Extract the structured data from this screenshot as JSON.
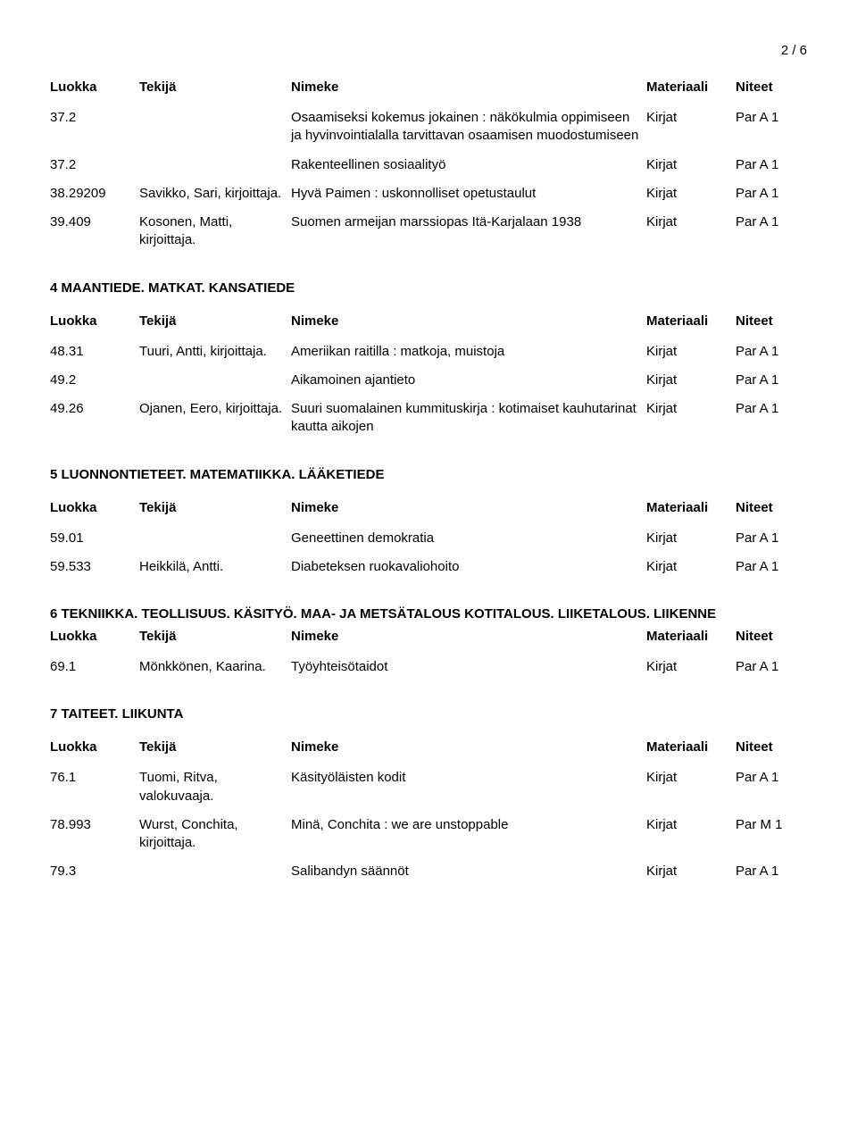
{
  "page_number": "2 / 6",
  "headers": {
    "luokka": "Luokka",
    "tekija": "Tekijä",
    "nimeke": "Nimeke",
    "materiaali": "Materiaali",
    "niteet": "Niteet"
  },
  "sections": [
    {
      "title": "",
      "rows": [
        {
          "luokka": "37.2",
          "tekija": "",
          "nimeke": "Osaamiseksi kokemus jokainen : näkökulmia oppimiseen ja hyvinvointialalla tarvittavan osaamisen muodostumiseen",
          "materiaali": "Kirjat",
          "niteet": "Par A 1"
        },
        {
          "luokka": "37.2",
          "tekija": "",
          "nimeke": "Rakenteellinen sosiaalityö",
          "materiaali": "Kirjat",
          "niteet": "Par A 1"
        },
        {
          "luokka": "38.29209",
          "tekija": "Savikko, Sari, kirjoittaja.",
          "nimeke": "Hyvä Paimen : uskonnolliset opetustaulut",
          "materiaali": "Kirjat",
          "niteet": "Par A 1"
        },
        {
          "luokka": "39.409",
          "tekija": "Kosonen, Matti, kirjoittaja.",
          "nimeke": "Suomen armeijan marssiopas Itä-Karjalaan 1938",
          "materiaali": "Kirjat",
          "niteet": "Par A 1"
        }
      ]
    },
    {
      "title": "4 MAANTIEDE. MATKAT. KANSATIEDE",
      "rows": [
        {
          "luokka": "48.31",
          "tekija": "Tuuri, Antti, kirjoittaja.",
          "nimeke": "Ameriikan raitilla : matkoja, muistoja",
          "materiaali": "Kirjat",
          "niteet": "Par A 1"
        },
        {
          "luokka": "49.2",
          "tekija": "",
          "nimeke": "Aikamoinen ajantieto",
          "materiaali": "Kirjat",
          "niteet": "Par A 1"
        },
        {
          "luokka": "49.26",
          "tekija": "Ojanen, Eero, kirjoittaja.",
          "nimeke": "Suuri suomalainen kummituskirja : kotimaiset kauhutarinat kautta aikojen",
          "materiaali": "Kirjat",
          "niteet": "Par A 1"
        }
      ]
    },
    {
      "title": "5 LUONNONTIETEET. MATEMATIIKKA. LÄÄKETIEDE",
      "rows": [
        {
          "luokka": "59.01",
          "tekija": "",
          "nimeke": "Geneettinen demokratia",
          "materiaali": "Kirjat",
          "niteet": "Par A 1"
        },
        {
          "luokka": "59.533",
          "tekija": "Heikkilä, Antti.",
          "nimeke": "Diabeteksen ruokavaliohoito",
          "materiaali": "Kirjat",
          "niteet": "Par A 1"
        }
      ]
    },
    {
      "title": "6 TEKNIIKKA. TEOLLISUUS. KÄSITYÖ. MAA- JA METSÄTALOUS KOTITALOUS. LIIKETALOUS. LIIKENNE",
      "tight": true,
      "rows": [
        {
          "luokka": "69.1",
          "tekija": "Mönkkönen, Kaarina.",
          "nimeke": "Työyhteisötaidot",
          "materiaali": "Kirjat",
          "niteet": "Par A 1"
        }
      ]
    },
    {
      "title": "7 TAITEET. LIIKUNTA",
      "rows": [
        {
          "luokka": "76.1",
          "tekija": "Tuomi, Ritva, valokuvaaja.",
          "nimeke": "Käsityöläisten kodit",
          "materiaali": "Kirjat",
          "niteet": "Par A 1"
        },
        {
          "luokka": "78.993",
          "tekija": "Wurst, Conchita, kirjoittaja.",
          "nimeke": "Minä, Conchita : we are unstoppable",
          "materiaali": "Kirjat",
          "niteet": "Par M 1"
        },
        {
          "luokka": "79.3",
          "tekija": "",
          "nimeke": "Salibandyn säännöt",
          "materiaali": "Kirjat",
          "niteet": "Par A 1"
        }
      ]
    }
  ]
}
